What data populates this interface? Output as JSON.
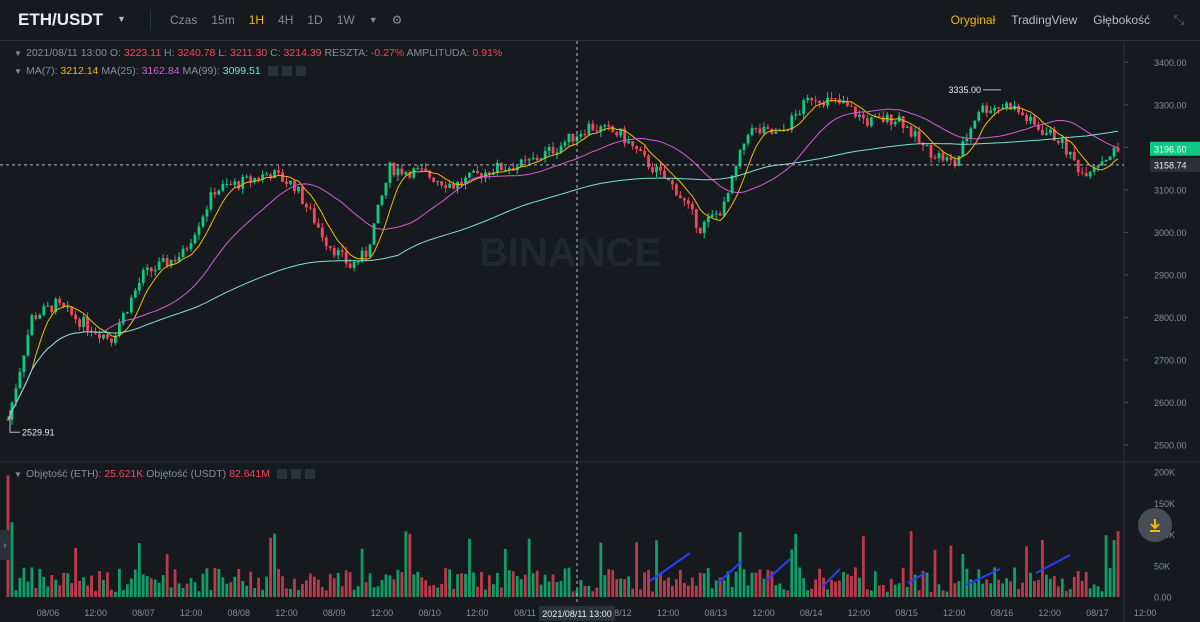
{
  "header": {
    "pair": "ETH/USDT",
    "intervals": [
      "Czas",
      "15m",
      "1H",
      "4H",
      "1D",
      "1W"
    ],
    "active_interval": "1H",
    "views": [
      "Oryginał",
      "TradingView",
      "Głębokość"
    ],
    "active_view": "Oryginał"
  },
  "ohlc_legend": {
    "date": "2021/08/11 13:00",
    "o_label": "O:",
    "o": "3223.11",
    "h_label": "H:",
    "h": "3240.78",
    "l_label": "L:",
    "l": "3211.30",
    "c_label": "C:",
    "c": "3214.39",
    "change_label": "RESZTA:",
    "change": "-0.27%",
    "amp_label": "AMPLITUDA:",
    "amp": "0.91%"
  },
  "ma_legend": {
    "ma7_label": "MA(7):",
    "ma7": "3212.14",
    "ma25_label": "MA(25):",
    "ma25": "3162.84",
    "ma99_label": "MA(99):",
    "ma99": "3099.51"
  },
  "volume_legend": {
    "eth_label": "Objętość (ETH):",
    "eth": "25.621K",
    "usdt_label": "Objętość (USDT)",
    "usdt": "82.641M"
  },
  "watermark": "BINANCE",
  "colors": {
    "up": "#0ecb81",
    "down": "#f6465d",
    "ma7": "#f0b90b",
    "ma25": "#d25fd1",
    "ma99": "#7fe2cb",
    "accent": "#f0b90b"
  },
  "chart_data": {
    "type": "candlestick",
    "y_axis": {
      "ticks": [
        "3400.00",
        "3300.00",
        "3200.00",
        "3100.00",
        "3000.00",
        "2900.00",
        "2800.00",
        "2700.00",
        "2600.00",
        "2500.00"
      ],
      "range": [
        2460,
        3450
      ]
    },
    "volume_axis": {
      "ticks": [
        "200K",
        "150K",
        "100K",
        "50K",
        "0.00"
      ],
      "range": [
        0,
        210000
      ]
    },
    "x_ticks": [
      "08/06",
      "12:00",
      "08/07",
      "12:00",
      "08/08",
      "12:00",
      "08/09",
      "12:00",
      "08/10",
      "12:00",
      "08/11",
      "2021/08/11 13:00",
      "08/12",
      "12:00",
      "08/13",
      "12:00",
      "08/14",
      "12:00",
      "08/15",
      "12:00",
      "08/16",
      "12:00",
      "08/17",
      "12:00"
    ],
    "crosshair_time_label": "2021/08/11 13:00",
    "last_price": "3196.60",
    "crosshair_price": "3158.74",
    "max_label": "3335.00",
    "min_label": "2529.91",
    "price_path": [
      {
        "t": 0,
        "p": 2560
      },
      {
        "t": 6,
        "p": 2800
      },
      {
        "t": 12,
        "p": 2830
      },
      {
        "t": 20,
        "p": 2780
      },
      {
        "t": 26,
        "p": 2750
      },
      {
        "t": 34,
        "p": 2900
      },
      {
        "t": 44,
        "p": 2950
      },
      {
        "t": 52,
        "p": 3100
      },
      {
        "t": 60,
        "p": 3120
      },
      {
        "t": 66,
        "p": 3140
      },
      {
        "t": 72,
        "p": 3110
      },
      {
        "t": 80,
        "p": 2980
      },
      {
        "t": 86,
        "p": 2920
      },
      {
        "t": 90,
        "p": 2950
      },
      {
        "t": 96,
        "p": 3150
      },
      {
        "t": 104,
        "p": 3140
      },
      {
        "t": 112,
        "p": 3110
      },
      {
        "t": 122,
        "p": 3150
      },
      {
        "t": 130,
        "p": 3160
      },
      {
        "t": 138,
        "p": 3200
      },
      {
        "t": 146,
        "p": 3250
      },
      {
        "t": 154,
        "p": 3230
      },
      {
        "t": 160,
        "p": 3170
      },
      {
        "t": 168,
        "p": 3100
      },
      {
        "t": 174,
        "p": 3010
      },
      {
        "t": 180,
        "p": 3060
      },
      {
        "t": 186,
        "p": 3240
      },
      {
        "t": 194,
        "p": 3230
      },
      {
        "t": 202,
        "p": 3320
      },
      {
        "t": 210,
        "p": 3300
      },
      {
        "t": 216,
        "p": 3260
      },
      {
        "t": 224,
        "p": 3270
      },
      {
        "t": 230,
        "p": 3200
      },
      {
        "t": 238,
        "p": 3160
      },
      {
        "t": 244,
        "p": 3290
      },
      {
        "t": 252,
        "p": 3300
      },
      {
        "t": 258,
        "p": 3250
      },
      {
        "t": 264,
        "p": 3220
      },
      {
        "t": 270,
        "p": 3140
      },
      {
        "t": 278,
        "p": 3190
      }
    ]
  }
}
